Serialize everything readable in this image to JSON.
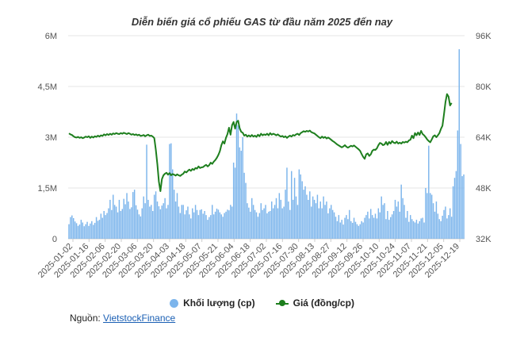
{
  "chart_data": {
    "type": "bar+line",
    "title": "Diễn biến giá cổ phiếu GAS từ đầu năm 2025 đến nay",
    "left_axis": {
      "ticks": [
        "0",
        "1,5M",
        "3M",
        "4,5M",
        "6M"
      ],
      "range": [
        0,
        6000000
      ]
    },
    "right_axis": {
      "ticks": [
        "32K",
        "48K",
        "64K",
        "80K",
        "96K"
      ],
      "range": [
        32000,
        96000
      ]
    },
    "x_ticks": [
      "2025-01-02",
      "2025-01-16",
      "2025-02-06",
      "2025-02-20",
      "2025-03-06",
      "2025-03-20",
      "2025-04-03",
      "2025-04-18",
      "2025-05-07",
      "2025-05-21",
      "2025-06-04",
      "2025-06-18",
      "2025-07-02",
      "2025-07-16",
      "2025-07-30",
      "2025-08-13",
      "2025-08-27",
      "2025-09-12",
      "2025-09-26",
      "2025-10-10",
      "2025-10-24",
      "2025-11-07",
      "2025-11-21",
      "2025-12-05",
      "2025-12-19"
    ],
    "series": [
      {
        "name": "Khối lượng (cp)",
        "kind": "bar",
        "axis": "left",
        "color": "#7cb5ec",
        "values": [
          430000,
          640000,
          690000,
          610000,
          510000,
          460000,
          380000,
          420000,
          560000,
          480000,
          370000,
          430000,
          500000,
          380000,
          450000,
          520000,
          410000,
          470000,
          640000,
          530000,
          560000,
          740000,
          620000,
          820000,
          700000,
          760000,
          900000,
          1150000,
          850000,
          1300000,
          1000000,
          950000,
          780000,
          1150000,
          820000,
          880000,
          1180000,
          1020000,
          1350000,
          1100000,
          880000,
          930000,
          1380000,
          1450000,
          990000,
          860000,
          720000,
          660000,
          900000,
          1250000,
          1050000,
          2780000,
          1150000,
          950000,
          1000000,
          820000,
          1300000,
          1400000,
          1100000,
          960000,
          870000,
          980000,
          1050000,
          1200000,
          900000,
          1000000,
          2800000,
          2820000,
          2050000,
          1450000,
          1100000,
          1350000,
          950000,
          760000,
          1000000,
          1000000,
          720000,
          840000,
          950000,
          720000,
          600000,
          900000,
          780000,
          1000000,
          850000,
          700000,
          850000,
          870000,
          740000,
          820000,
          700000,
          560000,
          640000,
          700000,
          1000000,
          720000,
          800000,
          890000,
          860000,
          780000,
          720000,
          650000,
          760000,
          800000,
          860000,
          840000,
          1000000,
          950000,
          2250000,
          2100000,
          3700000,
          3350000,
          2700000,
          2600000,
          3000000,
          1950000,
          1650000,
          1050000,
          920000,
          800000,
          1200000,
          1000000,
          850000,
          780000,
          650000,
          760000,
          1050000,
          850000,
          900000,
          1000000,
          750000,
          800000,
          820000,
          1100000,
          900000,
          1000000,
          1200000,
          900000,
          1350000,
          1150000,
          900000,
          950000,
          1450000,
          2100000,
          1100000,
          850000,
          2000000,
          1150000,
          1800000,
          1250000,
          1000000,
          2050000,
          1900000,
          1700000,
          1450000,
          1550000,
          1300000,
          1150000,
          1400000,
          950000,
          1250000,
          1150000,
          1050000,
          1300000,
          900000,
          1100000,
          900000,
          1250000,
          1000000,
          1100000,
          750000,
          900000,
          1000000,
          850000,
          780000,
          650000,
          520000,
          700000,
          480000,
          560000,
          420000,
          620000,
          700000,
          580000,
          850000,
          520000,
          470000,
          620000,
          500000,
          430000,
          380000,
          430000,
          520000,
          480000,
          620000,
          700000,
          800000,
          600000,
          880000,
          700000,
          620000,
          740000,
          600000,
          900000,
          780000,
          1250000,
          1000000,
          1050000,
          580000,
          820000,
          560000,
          640000,
          720000,
          820000,
          1150000,
          950000,
          1100000,
          800000,
          1600000,
          1200000,
          1000000,
          620000,
          820000,
          500000,
          700000,
          580000,
          520000,
          480000,
          560000,
          450000,
          520000,
          600000,
          620000,
          480000,
          1500000,
          1350000,
          2750000,
          1350000,
          1300000,
          1050000,
          800000,
          1100000,
          740000,
          580000,
          520000,
          680000,
          850000,
          950000,
          600000,
          700000,
          900000,
          650000,
          1550000,
          1800000,
          2000000,
          3200000,
          5600000,
          2800000,
          1850000,
          1900000
        ]
      },
      {
        "name": "Giá (đồng/cp)",
        "kind": "line",
        "axis": "right",
        "color": "#1e7f1e",
        "values": [
          65200,
          64900,
          64700,
          64300,
          64000,
          63900,
          64100,
          63800,
          64000,
          63700,
          63900,
          64200,
          64000,
          64300,
          63800,
          64200,
          63900,
          64300,
          64100,
          64500,
          64200,
          64600,
          64400,
          64900,
          64600,
          65000,
          64700,
          65100,
          64800,
          65200,
          65000,
          65300,
          65100,
          65000,
          65300,
          65100,
          65400,
          65200,
          65000,
          65300,
          65100,
          64800,
          65000,
          64700,
          64900,
          64600,
          64800,
          64400,
          64500,
          64700,
          64300,
          64600,
          64800,
          64400,
          64500,
          64200,
          63700,
          60000,
          55500,
          50000,
          47000,
          50800,
          52000,
          52500,
          52800,
          52200,
          52700,
          52000,
          52400,
          52200,
          51900,
          52300,
          52000,
          51800,
          52200,
          52500,
          53200,
          52900,
          53400,
          53800,
          53400,
          54000,
          53700,
          54300,
          54100,
          54800,
          54300,
          54500,
          54600,
          55000,
          55300,
          54800,
          55200,
          56000,
          55600,
          56300,
          56800,
          57500,
          58400,
          59600,
          61500,
          62700,
          62000,
          63800,
          65000,
          67000,
          64800,
          67800,
          68800,
          66700,
          68800,
          69200,
          66800,
          65700,
          65400,
          64500,
          64800,
          64200,
          64600,
          64200,
          64700,
          64200,
          64500,
          64100,
          64800,
          64300,
          65100,
          64600,
          64900,
          64700,
          65100,
          64600,
          65300,
          64800,
          65100,
          64900,
          64600,
          64900,
          64500,
          64200,
          64400,
          64000,
          64300,
          63800,
          64200,
          64500,
          64200,
          64700,
          64500,
          64900,
          65100,
          64700,
          65300,
          65600,
          65900,
          65700,
          66000,
          65800,
          66100,
          65600,
          65400,
          65200,
          64800,
          64400,
          64000,
          63700,
          64200,
          63800,
          64100,
          63600,
          63900,
          63600,
          63200,
          62800,
          62500,
          62100,
          61700,
          61400,
          61100,
          60800,
          61100,
          61500,
          61000,
          60700,
          61000,
          61300,
          61100,
          61400,
          61000,
          60600,
          60200,
          59700,
          58700,
          57800,
          57200,
          58600,
          58900,
          58100,
          58600,
          59700,
          60100,
          60000,
          60500,
          61500,
          62200,
          62000,
          61500,
          61700,
          62500,
          61600,
          62500,
          62000,
          62800,
          62300,
          62100,
          62600,
          62000,
          62300,
          62000,
          62500,
          62300,
          62600,
          62400,
          63000,
          63200,
          64500,
          63700,
          65300,
          64600,
          65500,
          64700,
          66000,
          65000,
          64600,
          64000,
          63300,
          62800,
          62400,
          63300,
          64300,
          64600,
          64000,
          64600,
          65300,
          66600,
          67600,
          71200,
          75100,
          77600,
          76800,
          74000,
          74800
        ]
      }
    ]
  },
  "source": {
    "label": "Nguồn:",
    "link_text": "VietstockFinance"
  }
}
